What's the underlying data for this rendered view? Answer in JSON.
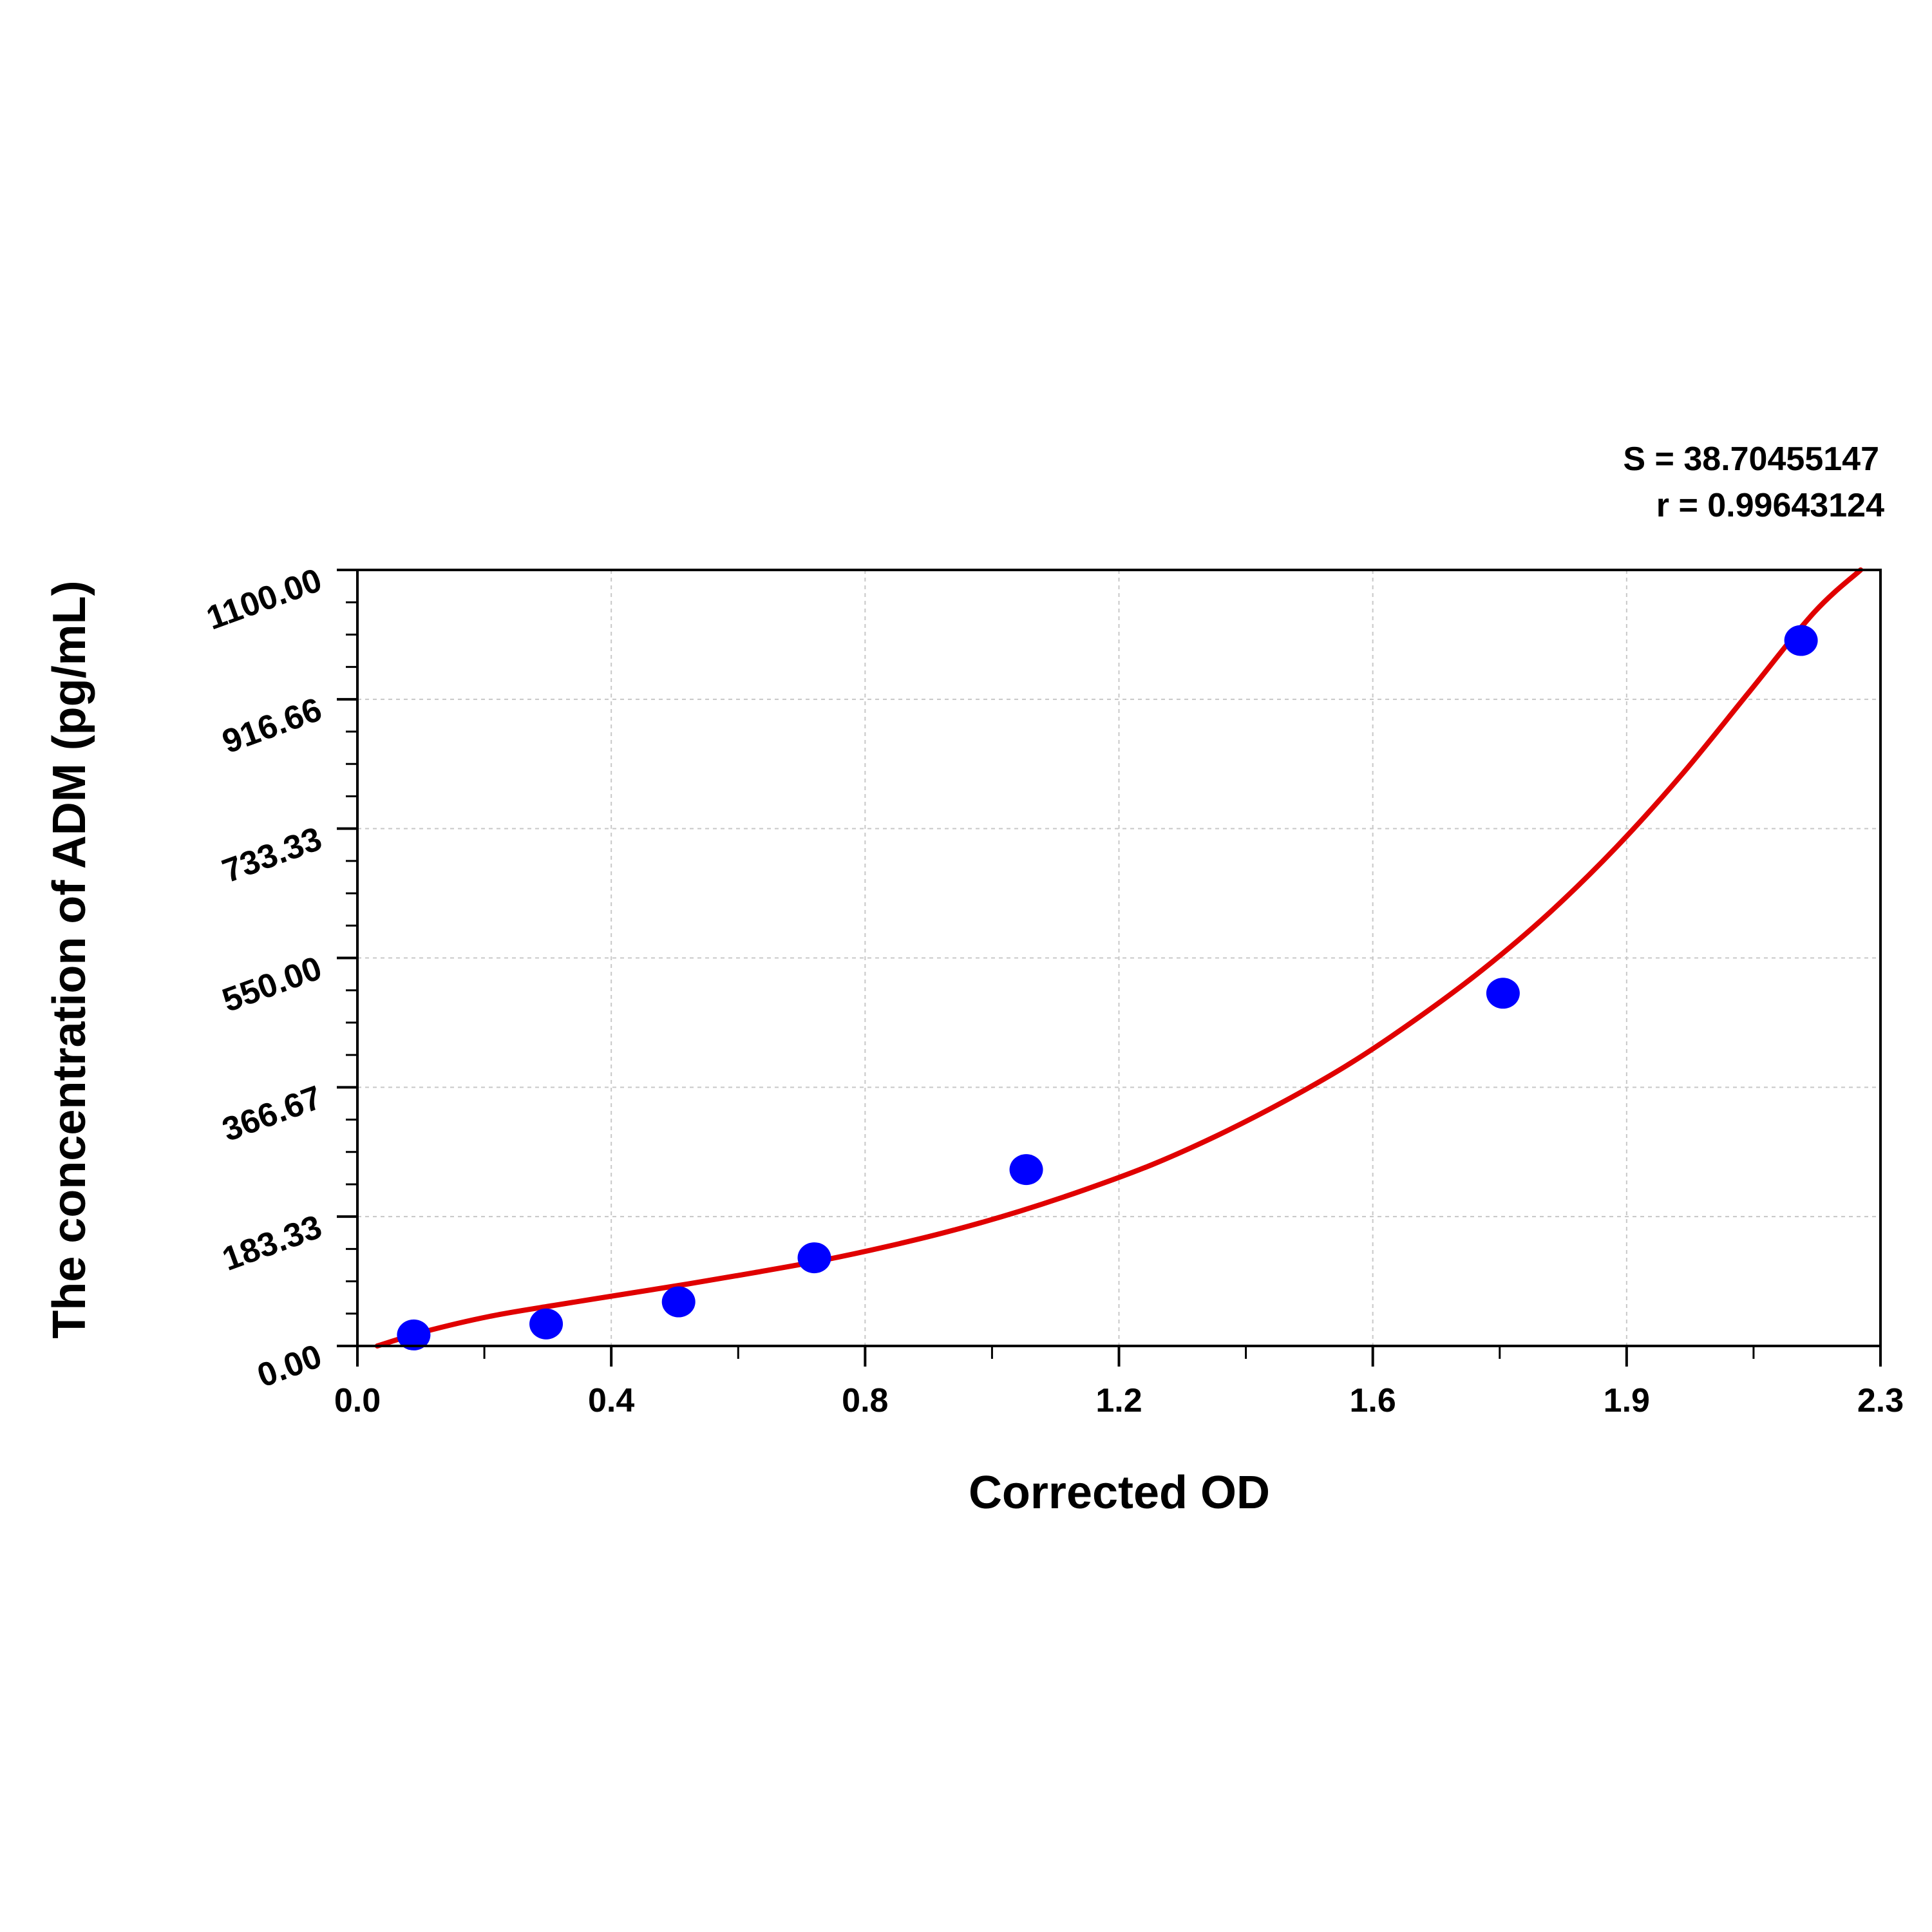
{
  "chart_data": {
    "type": "scatter",
    "xlabel": "Corrected OD",
    "ylabel": "The concentration of ADM (pg/mL)",
    "xlim": [
      0.0,
      2.3
    ],
    "ylim": [
      0.0,
      1100.0
    ],
    "x_ticks": [
      "0.0",
      "0.4",
      "0.8",
      "1.2",
      "1.6",
      "1.9",
      "2.3"
    ],
    "y_ticks": [
      "0.00",
      "183.33",
      "366.67",
      "550.00",
      "733.33",
      "916.66",
      "1100.00"
    ],
    "grid": true,
    "stats": {
      "s_label": "S = 38.70455147",
      "r_label": "r = 0.99643124"
    },
    "colors": {
      "points": "#0000ff",
      "curve": "#e00000",
      "grid": "#c8c8c8"
    },
    "series": [
      {
        "kind": "points",
        "x": [
          0.085,
          0.285,
          0.485,
          0.69,
          1.01,
          1.73,
          2.18
        ],
        "y": [
          15.6,
          31.2,
          62.5,
          125,
          250,
          500,
          1000
        ]
      },
      {
        "kind": "fit-curve",
        "x": [
          0.03,
          0.1,
          0.2,
          0.3,
          0.4,
          0.5,
          0.6,
          0.7,
          0.8,
          0.9,
          1.0,
          1.1,
          1.2,
          1.3,
          1.4,
          1.5,
          1.6,
          1.7,
          1.8,
          1.9,
          2.0,
          2.1,
          2.2,
          2.27
        ],
        "y": [
          0,
          20,
          42,
          58,
          73,
          88,
          104,
          121,
          141,
          164,
          191,
          222,
          257,
          299,
          347,
          401,
          464,
          534,
          614,
          706,
          810,
          925,
          1040,
          1100
        ]
      }
    ]
  }
}
